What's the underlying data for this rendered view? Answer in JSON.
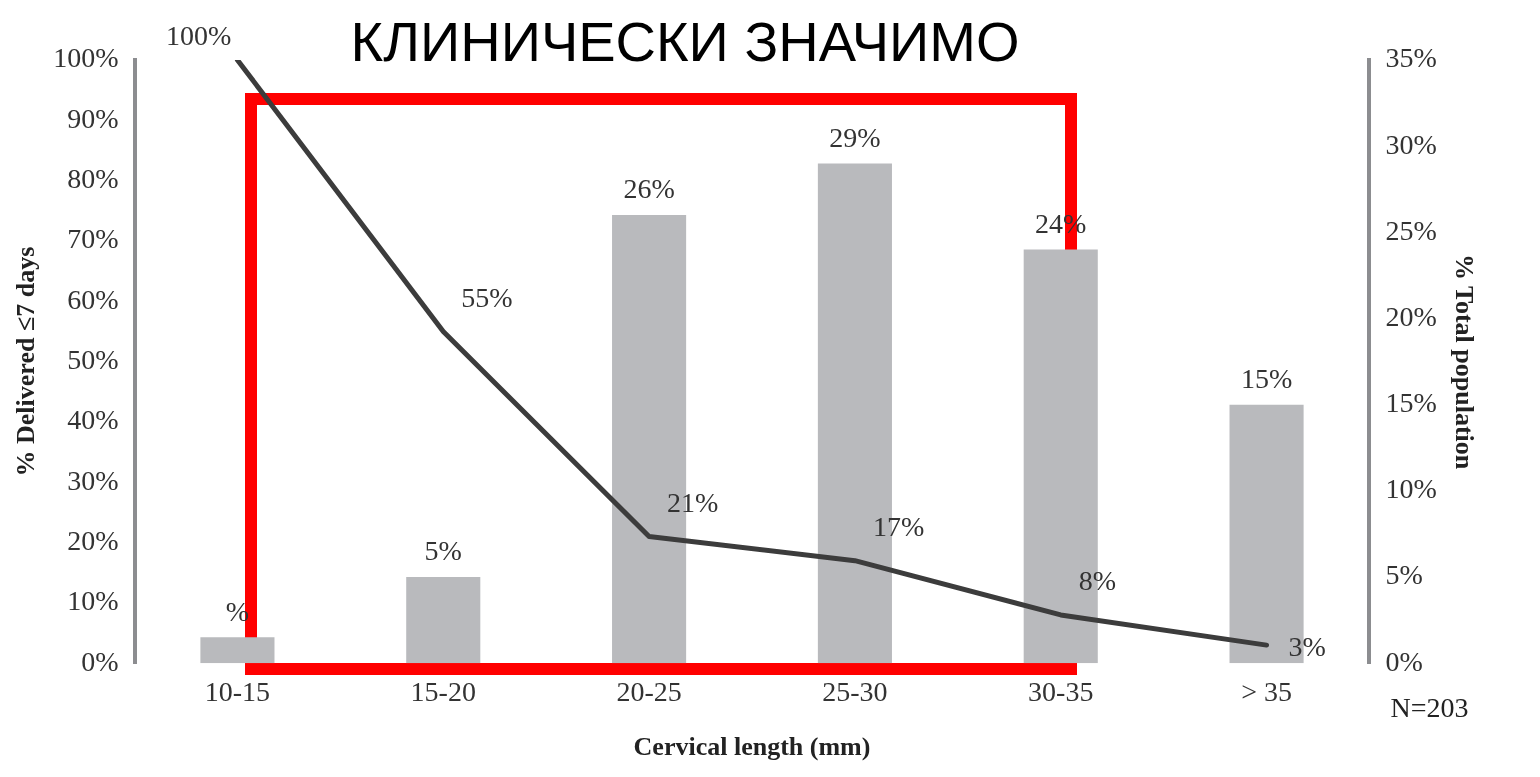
{
  "chart_data": {
    "type": "bar",
    "title": "КЛИНИЧЕСКИ ЗНАЧИМО",
    "xlabel": "Cervical length (mm)",
    "ylabel": "% Delivered ≤7 days",
    "y2label": "% Total population",
    "categories": [
      "10-15",
      "15-20",
      "20-25",
      "25-30",
      "30-35",
      "> 35"
    ],
    "series": [
      {
        "axis": "y2",
        "color": "#b9babd",
        "values": [
          1.5,
          5,
          26,
          29,
          24,
          15
        ],
        "value_labels": [
          "%",
          "5%",
          "26%",
          "29%",
          "24%",
          "15%"
        ]
      },
      {
        "type": "line",
        "axis": "y",
        "color": "#3c3c3c",
        "marker": "none",
        "line_style": "solid",
        "values": [
          100,
          55,
          21,
          17,
          8,
          3
        ],
        "value_labels": [
          "100%",
          "55%",
          "21%",
          "17%",
          "8%",
          "3%"
        ]
      }
    ],
    "ylim": [
      0,
      100
    ],
    "yticks": [
      {
        "value": 0,
        "label": "0%"
      },
      {
        "value": 10,
        "label": "10%"
      },
      {
        "value": 20,
        "label": "20%"
      },
      {
        "value": 30,
        "label": "30%"
      },
      {
        "value": 40,
        "label": "40%"
      },
      {
        "value": 50,
        "label": "50%"
      },
      {
        "value": 60,
        "label": "60%"
      },
      {
        "value": 70,
        "label": "70%"
      },
      {
        "value": 80,
        "label": "80%"
      },
      {
        "value": 90,
        "label": "90%"
      },
      {
        "value": 100,
        "label": "100%"
      }
    ],
    "y2lim": [
      0,
      35
    ],
    "y2ticks": [
      {
        "value": 0,
        "label": "0%"
      },
      {
        "value": 5,
        "label": "5%"
      },
      {
        "value": 10,
        "label": "10%"
      },
      {
        "value": 15,
        "label": "15%"
      },
      {
        "value": 20,
        "label": "20%"
      },
      {
        "value": 25,
        "label": "25%"
      },
      {
        "value": 30,
        "label": "30%"
      },
      {
        "value": 35,
        "label": "35%"
      }
    ],
    "grid": false,
    "legend": false,
    "annotations": [
      "N=203"
    ]
  }
}
